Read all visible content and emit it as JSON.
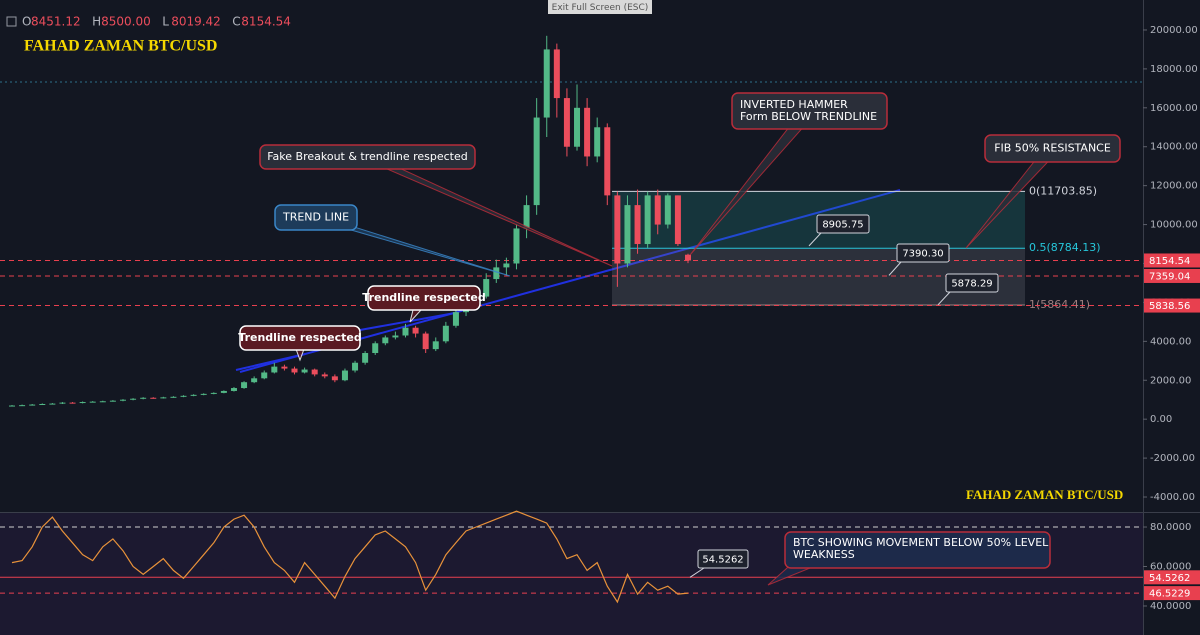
{
  "ui": {
    "exit_fullscreen": "Exit Full Screen (ESC)"
  },
  "chart_data": [
    {
      "type": "candlestick",
      "title": "FAHAD ZAMAN BTC/USD",
      "watermark": "FAHAD ZAMAN BTC/USD",
      "ohlc_legend": [
        {
          "key": "O",
          "label": "8451.12"
        },
        {
          "key": "H",
          "label": "8500.00"
        },
        {
          "key": "L",
          "label": "8019.42"
        },
        {
          "key": "C",
          "label": "8154.54"
        }
      ],
      "up_color": "#53b987",
      "down_color": "#eb4d5c",
      "open": [
        680,
        700,
        720,
        750,
        780,
        800,
        850,
        830,
        880,
        900,
        920,
        950,
        1000,
        1050,
        1100,
        1080,
        1120,
        1150,
        1200,
        1250,
        1300,
        1350,
        1450,
        1600,
        1900,
        2100,
        2400,
        2700,
        2600,
        2400,
        2550,
        2300,
        2200,
        2000,
        2500,
        2900,
        3400,
        3900,
        4200,
        4300,
        4700,
        4400,
        3600,
        4000,
        4800,
        5500,
        6000,
        6300,
        7200,
        7800,
        8000,
        9800,
        11000,
        15500,
        19000,
        16500,
        14000,
        16000,
        13500,
        15000,
        11500,
        8000,
        11000,
        9000,
        11500,
        10000,
        11500,
        8451.12
      ],
      "high": [
        730,
        750,
        780,
        810,
        830,
        880,
        880,
        910,
        930,
        950,
        980,
        1030,
        1080,
        1130,
        1130,
        1150,
        1180,
        1230,
        1280,
        1330,
        1380,
        1480,
        1650,
        1950,
        2200,
        2500,
        2900,
        2800,
        2700,
        2650,
        2600,
        2400,
        2300,
        2600,
        3000,
        3500,
        4000,
        4300,
        4500,
        4900,
        4800,
        4500,
        4200,
        5000,
        5700,
        6200,
        6600,
        7500,
        8200,
        8300,
        10000,
        11500,
        16500,
        19700,
        19300,
        17000,
        17200,
        16500,
        15500,
        15200,
        11700,
        11500,
        11800,
        11700,
        11800,
        11600,
        11500,
        8500
      ],
      "low": [
        660,
        680,
        700,
        730,
        760,
        780,
        800,
        810,
        860,
        880,
        900,
        920,
        970,
        1020,
        1050,
        1060,
        1100,
        1130,
        1180,
        1230,
        1280,
        1330,
        1420,
        1560,
        1850,
        2050,
        2350,
        2500,
        2300,
        2350,
        2200,
        2100,
        1900,
        1950,
        2400,
        2800,
        3300,
        3800,
        4100,
        4200,
        4200,
        3400,
        3500,
        3900,
        4700,
        5300,
        5800,
        6200,
        7000,
        7400,
        7700,
        9300,
        10500,
        14500,
        15500,
        13500,
        13800,
        13000,
        13200,
        11000,
        6800,
        7800,
        8500,
        8800,
        9500,
        9800,
        8900,
        8019.42
      ],
      "close": [
        700,
        720,
        750,
        780,
        800,
        850,
        830,
        880,
        900,
        920,
        950,
        1000,
        1050,
        1100,
        1080,
        1120,
        1150,
        1200,
        1250,
        1300,
        1350,
        1450,
        1600,
        1900,
        2100,
        2400,
        2700,
        2600,
        2400,
        2550,
        2300,
        2200,
        2000,
        2500,
        2900,
        3400,
        3900,
        4200,
        4300,
        4700,
        4400,
        3600,
        4000,
        4800,
        5500,
        6000,
        6300,
        7200,
        7800,
        8000,
        9800,
        11000,
        15500,
        19000,
        16500,
        14000,
        16000,
        13500,
        15000,
        11500,
        8000,
        11000,
        9000,
        11500,
        10000,
        11500,
        9000,
        8154.54
      ],
      "ylim": [
        -4770,
        21540
      ],
      "yticks": [
        {
          "value": 20000,
          "label": "20000.00"
        },
        {
          "value": 18000,
          "label": "18000.00"
        },
        {
          "value": 16000,
          "label": "16000.00"
        },
        {
          "value": 14000,
          "label": "14000.00"
        },
        {
          "value": 12000,
          "label": "12000.00"
        },
        {
          "value": 10000,
          "label": "10000.00"
        },
        {
          "value": 8000,
          "label": "8000.00"
        },
        {
          "value": 6000,
          "label": "6000.00"
        },
        {
          "value": 4000,
          "label": "4000.00"
        },
        {
          "value": 2000,
          "label": "2000.00"
        },
        {
          "value": 0,
          "label": "0.00"
        },
        {
          "value": -2000,
          "label": "-2000.00"
        },
        {
          "value": -4000,
          "label": "-4000.00"
        }
      ],
      "price_markers": [
        8154.54,
        7359.04,
        5838.56
      ],
      "marker_color": "#e8404f",
      "fib_levels": [
        {
          "value": 11703.85,
          "label": "0(11703.85)"
        },
        {
          "value": 8784.13,
          "label": "0.5(8784.13)"
        },
        {
          "value": 5864.41,
          "label": "1(5864.41)"
        }
      ],
      "callouts": [
        8905.75,
        {
          "value": 7390.3,
          "label": "7390.30"
        },
        5878.29
      ],
      "annotations": [
        [
          "Trendline respected"
        ],
        [
          "Trendline respected"
        ],
        [
          "Fake Breakout & trendline respected"
        ],
        [
          "TREND LINE"
        ],
        [
          "INVERTED HAMMER",
          "Form BELOW TRENDLINE"
        ],
        [
          "FIB 50% RESISTANCE"
        ]
      ]
    },
    {
      "type": "line",
      "color": "#e8923a",
      "values": [
        62,
        63,
        70,
        80,
        85,
        78,
        72,
        66,
        63,
        70,
        74,
        68,
        60,
        56,
        60,
        64,
        58,
        54,
        60,
        66,
        72,
        80,
        84,
        86,
        80,
        70,
        62,
        58,
        52,
        62,
        56,
        50,
        44,
        55,
        64,
        70,
        76,
        78,
        74,
        70,
        62,
        48,
        56,
        66,
        72,
        78,
        80,
        82,
        84,
        86,
        88,
        86,
        84,
        82,
        74,
        64,
        66,
        58,
        62,
        50,
        42,
        56,
        46,
        52,
        48,
        50,
        46,
        46.5229
      ],
      "ylim": [
        25.3,
        87.1
      ],
      "yticks": [
        {
          "value": 80,
          "label": "80.0000"
        },
        {
          "value": 60,
          "label": "60.0000"
        },
        {
          "value": 40,
          "label": "40.0000"
        }
      ],
      "markers": [
        54.5262,
        46.5229
      ],
      "marker_color": "#e8404f",
      "callout": 54.5262,
      "annotation": [
        "BTC SHOWING MOVEMENT BELOW 50% LEVEL",
        "WEAKNESS"
      ]
    }
  ]
}
